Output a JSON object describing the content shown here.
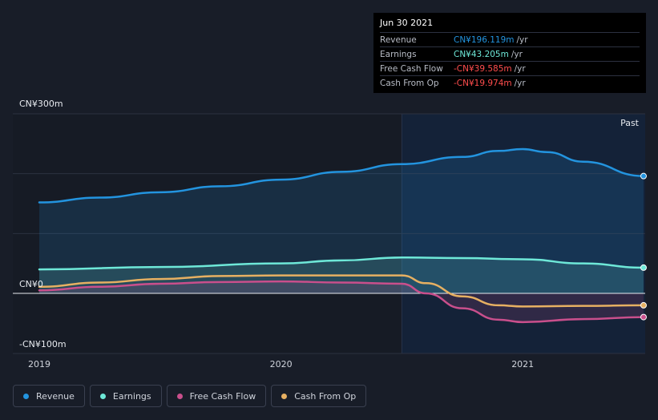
{
  "tooltip": {
    "date": "Jun 30 2021",
    "rows": [
      {
        "label": "Revenue",
        "value": "CN¥196.119m",
        "unit": "/yr",
        "color": "#2394df"
      },
      {
        "label": "Earnings",
        "value": "CN¥43.205m",
        "unit": "/yr",
        "color": "#6ee8d8"
      },
      {
        "label": "Free Cash Flow",
        "value": "-CN¥39.585m",
        "unit": "/yr",
        "color": "#ff4d4d"
      },
      {
        "label": "Cash From Op",
        "value": "-CN¥19.974m",
        "unit": "/yr",
        "color": "#ff4d4d"
      }
    ]
  },
  "legend": [
    {
      "label": "Revenue",
      "color": "#2394df"
    },
    {
      "label": "Earnings",
      "color": "#6ee8d8"
    },
    {
      "label": "Free Cash Flow",
      "color": "#c94f8c"
    },
    {
      "label": "Cash From Op",
      "color": "#e6b062"
    }
  ],
  "chart_data": {
    "type": "line",
    "past_label": "Past",
    "y_ticks": [
      {
        "value": 300,
        "label": "CN¥300m"
      },
      {
        "value": 0,
        "label": "CN¥0"
      },
      {
        "value": -100,
        "label": "-CN¥100m"
      }
    ],
    "ylim": [
      -100,
      300
    ],
    "xlim": [
      2019.0,
      2021.5
    ],
    "x_ticks": [
      {
        "value": 2019,
        "label": "2019"
      },
      {
        "value": 2020,
        "label": "2020"
      },
      {
        "value": 2021,
        "label": "2021"
      }
    ],
    "highlight_from": 2020.5,
    "series": [
      {
        "name": "Revenue",
        "color": "#2394df",
        "fill": true,
        "x": [
          2019.0,
          2019.25,
          2019.5,
          2019.75,
          2020.0,
          2020.25,
          2020.5,
          2020.75,
          2020.9,
          2021.0,
          2021.1,
          2021.25,
          2021.5
        ],
        "y": [
          152,
          160,
          169,
          179,
          190,
          203,
          216,
          228,
          238,
          241,
          236,
          220,
          196
        ]
      },
      {
        "name": "Earnings",
        "color": "#6ee8d8",
        "fill": true,
        "x": [
          2019.0,
          2019.5,
          2020.0,
          2020.25,
          2020.5,
          2020.75,
          2021.0,
          2021.25,
          2021.5
        ],
        "y": [
          40,
          44,
          50,
          55,
          60,
          59,
          57,
          50,
          43
        ]
      },
      {
        "name": "Free Cash Flow",
        "color": "#c94f8c",
        "fill": true,
        "x": [
          2019.0,
          2019.25,
          2019.5,
          2019.75,
          2020.0,
          2020.25,
          2020.5,
          2020.6,
          2020.75,
          2020.9,
          2021.0,
          2021.25,
          2021.5
        ],
        "y": [
          5,
          11,
          16,
          19,
          20,
          18,
          16,
          0,
          -25,
          -44,
          -48,
          -43,
          -39.6
        ]
      },
      {
        "name": "Cash From Op",
        "color": "#e6b062",
        "fill": false,
        "x": [
          2019.0,
          2019.25,
          2019.5,
          2019.75,
          2020.0,
          2020.25,
          2020.5,
          2020.6,
          2020.75,
          2020.9,
          2021.0,
          2021.25,
          2021.5
        ],
        "y": [
          11,
          18,
          24,
          29,
          30,
          30,
          30,
          17,
          -5,
          -20,
          -22,
          -21,
          -20
        ]
      }
    ]
  }
}
